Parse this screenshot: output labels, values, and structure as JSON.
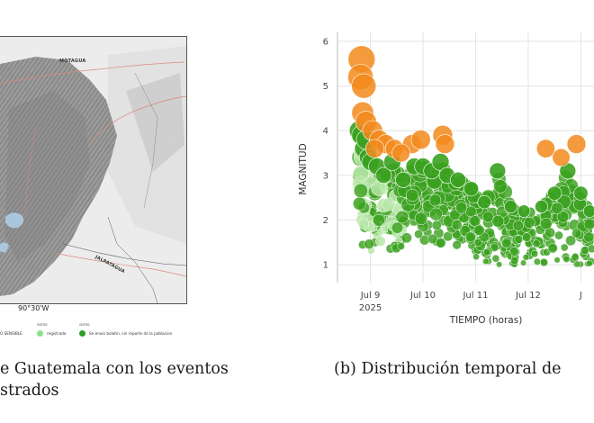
{
  "figure_a": {
    "map_labels": {
      "top": "MOTAGUA",
      "bottom": "JALPATAGUA"
    },
    "longitude_label": "90°30'W",
    "legend": {
      "group1_header": "sismo",
      "group2_header": "sismo",
      "item0_label": "O SENSIBLE",
      "item1_label": "registrado",
      "item2_label": "Se envio boletin, sin reporte de la poblacion",
      "item1_color": "#8be08a",
      "item2_color": "#2e9e20"
    },
    "caption_line1": "e Guatemala con los eventos",
    "caption_line2": "strados"
  },
  "figure_b": {
    "caption": "(b) Distribución temporal de"
  },
  "chart_data": {
    "type": "scatter",
    "title": "",
    "xlabel": "TIEMPO (horas)",
    "ylabel": "MAGNITUD",
    "ylim": [
      0.6,
      6.2
    ],
    "xlim_days": [
      "2025-07-08 09:00",
      "2025-07-13 06:00"
    ],
    "x_ticks": [
      "Jul 9",
      "Jul 10",
      "Jul 11",
      "Jul 12",
      "J"
    ],
    "x_tick_sublabel": "2025",
    "y_ticks": [
      "1",
      "2",
      "3",
      "4",
      "5",
      "6"
    ],
    "grid": true,
    "series": [
      {
        "color": "#f28a1c",
        "values": [
          {
            "t": "2025-07-08 20:00",
            "m": 5.6
          },
          {
            "t": "2025-07-08 19:30",
            "m": 5.2
          },
          {
            "t": "2025-07-08 21:00",
            "m": 5.0
          },
          {
            "t": "2025-07-08 20:30",
            "m": 4.4
          },
          {
            "t": "2025-07-08 22:00",
            "m": 4.2
          },
          {
            "t": "2025-07-09 01:00",
            "m": 4.0
          },
          {
            "t": "2025-07-09 04:00",
            "m": 3.8
          },
          {
            "t": "2025-07-09 07:00",
            "m": 3.7
          },
          {
            "t": "2025-07-09 02:00",
            "m": 3.6
          },
          {
            "t": "2025-07-09 11:00",
            "m": 3.6
          },
          {
            "t": "2025-07-09 19:00",
            "m": 3.7
          },
          {
            "t": "2025-07-09 23:00",
            "m": 3.8
          },
          {
            "t": "2025-07-10 09:00",
            "m": 3.9
          },
          {
            "t": "2025-07-10 10:00",
            "m": 3.7
          },
          {
            "t": "2025-07-09 14:00",
            "m": 3.5
          },
          {
            "t": "2025-07-12 08:00",
            "m": 3.6
          },
          {
            "t": "2025-07-12 15:00",
            "m": 3.4
          },
          {
            "t": "2025-07-12 22:00",
            "m": 3.7
          }
        ]
      },
      {
        "color": "#3aa11f",
        "values": [
          {
            "t": "2025-07-08 19:00",
            "m": 4.0
          },
          {
            "t": "2025-07-08 20:00",
            "m": 3.9
          },
          {
            "t": "2025-07-08 21:00",
            "m": 3.6
          },
          {
            "t": "2025-07-08 22:00",
            "m": 3.8
          },
          {
            "t": "2025-07-08 23:00",
            "m": 3.4
          },
          {
            "t": "2025-07-09 00:00",
            "m": 3.3
          },
          {
            "t": "2025-07-09 03:00",
            "m": 3.2
          },
          {
            "t": "2025-07-09 06:00",
            "m": 3.0
          },
          {
            "t": "2025-07-09 10:00",
            "m": 3.3
          },
          {
            "t": "2025-07-09 15:00",
            "m": 2.9
          },
          {
            "t": "2025-07-09 20:00",
            "m": 3.2
          },
          {
            "t": "2025-07-10 00:00",
            "m": 3.2
          },
          {
            "t": "2025-07-10 04:00",
            "m": 3.1
          },
          {
            "t": "2025-07-10 08:00",
            "m": 3.3
          },
          {
            "t": "2025-07-10 11:00",
            "m": 3.0
          },
          {
            "t": "2025-07-10 16:00",
            "m": 2.9
          },
          {
            "t": "2025-07-10 22:00",
            "m": 2.7
          },
          {
            "t": "2025-07-11 04:00",
            "m": 2.4
          },
          {
            "t": "2025-07-11 10:00",
            "m": 3.1
          },
          {
            "t": "2025-07-11 16:00",
            "m": 2.3
          },
          {
            "t": "2025-07-11 22:00",
            "m": 2.2
          },
          {
            "t": "2025-07-12 06:00",
            "m": 2.3
          },
          {
            "t": "2025-07-12 12:00",
            "m": 2.6
          },
          {
            "t": "2025-07-12 18:00",
            "m": 3.1
          },
          {
            "t": "2025-07-13 00:00",
            "m": 2.6
          },
          {
            "t": "2025-07-13 04:00",
            "m": 2.2
          }
        ]
      }
    ]
  }
}
